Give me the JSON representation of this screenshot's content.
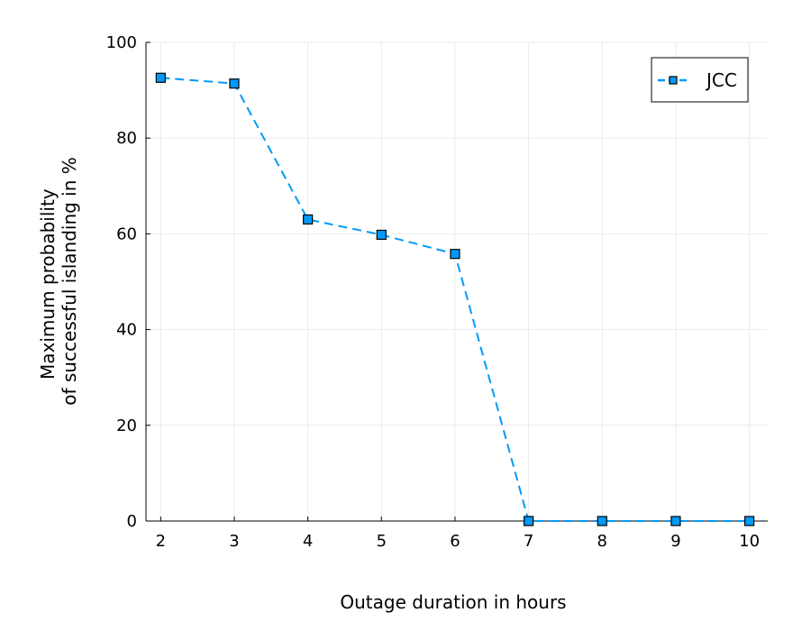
{
  "chart_data": {
    "type": "line",
    "x": [
      2,
      3,
      4,
      5,
      6,
      7,
      8,
      9,
      10
    ],
    "series": [
      {
        "name": "JCC",
        "values": [
          92.6,
          91.4,
          63.0,
          59.8,
          55.8,
          0,
          0,
          0,
          0
        ],
        "color": "#009af9"
      }
    ],
    "xlabel": "Outage duration in hours",
    "ylabel_lines": [
      "Maximum probability",
      "of successful islanding in %"
    ],
    "xlim": [
      1.8,
      10.25
    ],
    "ylim": [
      0,
      100
    ],
    "xticks": [
      2,
      3,
      4,
      5,
      6,
      7,
      8,
      9,
      10
    ],
    "yticks": [
      0,
      20,
      40,
      60,
      80,
      100
    ],
    "grid": true,
    "legend_position": "top-right",
    "line_style": "dashed",
    "marker": "square"
  }
}
